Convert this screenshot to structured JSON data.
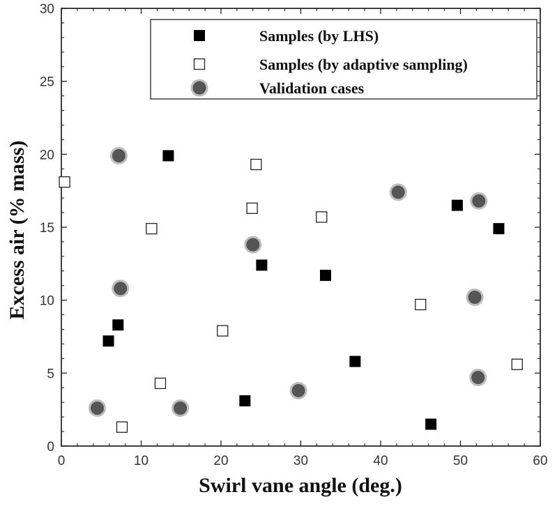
{
  "chart_data": {
    "type": "scatter",
    "xlabel": "Swirl vane angle (deg.)",
    "ylabel": "Excess air (% mass)",
    "xlim": [
      0,
      60
    ],
    "ylim": [
      0,
      30
    ],
    "x_ticks": [
      "0",
      "10",
      "20",
      "30",
      "40",
      "50",
      "60"
    ],
    "y_ticks": [
      "0",
      "5",
      "10",
      "15",
      "20",
      "25",
      "30"
    ],
    "grid": false,
    "legend_position": "top-right",
    "series": [
      {
        "name": "Samples (by LHS)",
        "marker": "filled-square",
        "color": "#000000",
        "x": [
          5.9,
          7.1,
          13.4,
          23.0,
          25.1,
          33.1,
          36.8,
          46.3,
          49.6,
          54.8
        ],
        "y": [
          7.2,
          8.3,
          19.9,
          3.1,
          12.4,
          11.7,
          5.8,
          1.5,
          16.5,
          14.9
        ]
      },
      {
        "name": "Samples (by adaptive sampling)",
        "marker": "open-square",
        "color": "#000000",
        "x": [
          0.4,
          7.6,
          11.3,
          12.4,
          20.2,
          23.9,
          24.4,
          32.6,
          45.0,
          57.1
        ],
        "y": [
          18.1,
          1.3,
          14.9,
          4.3,
          7.9,
          16.3,
          19.3,
          15.7,
          9.7,
          5.6
        ]
      },
      {
        "name": "Validation cases",
        "marker": "filled-circle",
        "color": "#555555",
        "x": [
          4.5,
          7.2,
          7.4,
          14.9,
          24.0,
          29.7,
          42.2,
          51.8,
          52.2,
          52.3
        ],
        "y": [
          2.6,
          19.9,
          10.8,
          2.6,
          13.8,
          3.8,
          17.4,
          10.2,
          4.7,
          16.8
        ]
      }
    ]
  }
}
